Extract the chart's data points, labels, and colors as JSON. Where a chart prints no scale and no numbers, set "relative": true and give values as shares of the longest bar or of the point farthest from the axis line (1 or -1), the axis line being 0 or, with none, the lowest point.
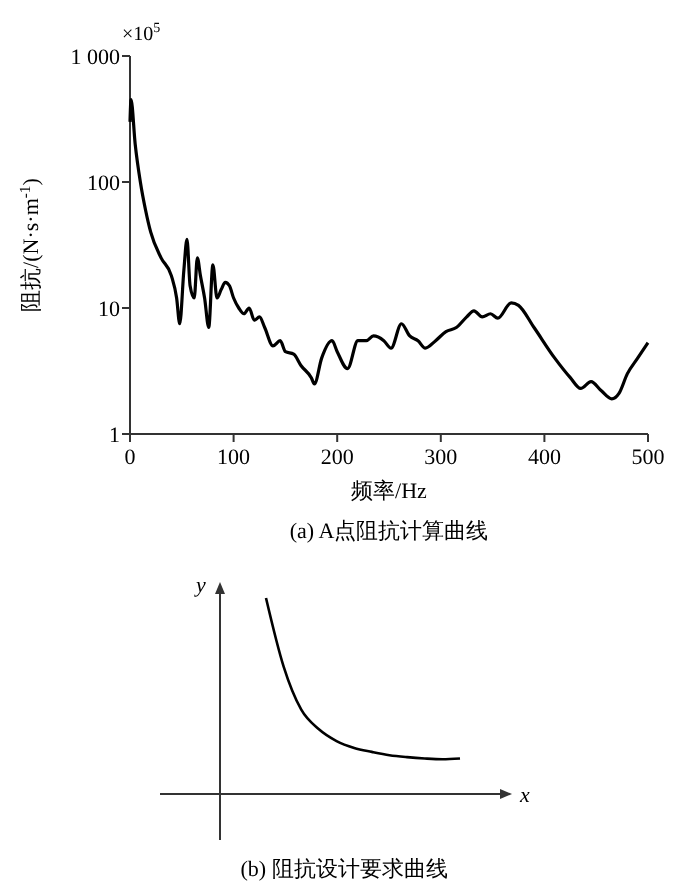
{
  "chart_data": [
    {
      "type": "line",
      "title": "(a) A点阻抗计算曲线",
      "xlabel": "频率/Hz",
      "ylabel": "阻抗/(N·s·m$^{-1}$)",
      "annotations": [
        "×10$^{5}$"
      ],
      "log": "y",
      "color": "#000000",
      "x": [
        0,
        1,
        5,
        10,
        15,
        20,
        30,
        40,
        45,
        48,
        52,
        55,
        58,
        62,
        65,
        68,
        72,
        76,
        80,
        84,
        88,
        92,
        96,
        100,
        105,
        110,
        115,
        120,
        125,
        130,
        138,
        145,
        150,
        158,
        165,
        175,
        178,
        185,
        195,
        200,
        210,
        220,
        228,
        235,
        245,
        252,
        262,
        270,
        278,
        285,
        295,
        305,
        315,
        325,
        332,
        340,
        348,
        355,
        368,
        375,
        390,
        410,
        425,
        435,
        445,
        455,
        465,
        472,
        480,
        490,
        500
      ],
      "values": [
        300,
        450,
        200,
        100,
        60,
        40,
        25,
        18,
        12,
        7.5,
        20,
        35,
        15,
        12,
        25,
        18,
        12,
        7,
        22,
        12,
        14,
        16,
        15,
        12,
        10,
        9,
        10,
        8,
        8.5,
        7,
        5,
        5.5,
        4.5,
        4.3,
        3.5,
        2.8,
        2.5,
        4,
        5.5,
        4.5,
        3.3,
        5.5,
        5.5,
        6,
        5.5,
        4.8,
        7.5,
        6,
        5.5,
        4.8,
        5.5,
        6.5,
        7,
        8.5,
        9.5,
        8.5,
        9,
        8.3,
        11,
        10.5,
        7,
        4,
        2.8,
        2.3,
        2.6,
        2.2,
        1.9,
        2.1,
        3,
        4,
        5.3
      ],
      "xlim": [
        0,
        500
      ],
      "xticks": [
        0,
        100,
        200,
        300,
        400,
        500
      ],
      "ylim": [
        1,
        1000
      ],
      "yticks": [
        1,
        10,
        100,
        {
          "value": 1000,
          "label": "1 000"
        }
      ]
    },
    {
      "type": "line",
      "relative": true,
      "title": "(b) 阻抗设计要求曲线",
      "xlabel": "x",
      "ylabel": "y",
      "color": "#000000",
      "categories": [
        null,
        null,
        null,
        null,
        null,
        null,
        null,
        null,
        null,
        null,
        null,
        null
      ],
      "values": [
        1.0,
        0.65,
        0.43,
        0.33,
        0.27,
        0.235,
        0.215,
        0.198,
        0.188,
        0.181,
        0.177,
        0.181
      ]
    }
  ]
}
